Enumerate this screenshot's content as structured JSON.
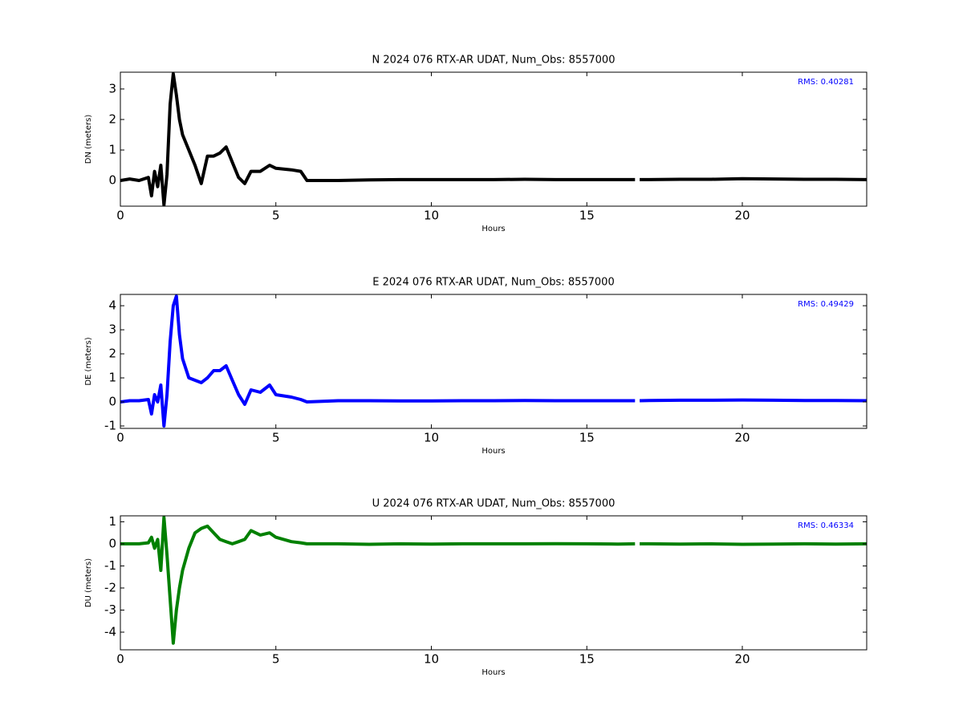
{
  "chart_data": [
    {
      "type": "line",
      "title": "N 2024 076 RTX-AR  UDAT, Num_Obs: 8557000",
      "xlabel": "Hours",
      "ylabel": "DN (meters)",
      "annotation": "RMS:  0.40281",
      "color": "#000000",
      "x": [
        0,
        0.3,
        0.6,
        0.9,
        1.0,
        1.1,
        1.2,
        1.3,
        1.4,
        1.5,
        1.6,
        1.7,
        1.8,
        1.9,
        2.0,
        2.2,
        2.4,
        2.6,
        2.8,
        3.0,
        3.2,
        3.4,
        3.6,
        3.8,
        4.0,
        4.2,
        4.5,
        4.8,
        5.0,
        5.5,
        5.8,
        6.0,
        7,
        8,
        9,
        10,
        11,
        12,
        13,
        14,
        15,
        16,
        16.55,
        16.6,
        16.7,
        17,
        18,
        19,
        20,
        21,
        22,
        23,
        24
      ],
      "values": [
        0,
        0.05,
        0,
        0.1,
        -0.5,
        0.3,
        -0.2,
        0.5,
        -0.8,
        0.2,
        2.5,
        3.5,
        2.8,
        2.0,
        1.5,
        1.0,
        0.5,
        -0.1,
        0.8,
        0.8,
        0.9,
        1.1,
        0.6,
        0.1,
        -0.1,
        0.3,
        0.3,
        0.5,
        0.4,
        0.35,
        0.3,
        0,
        0,
        0.02,
        0.03,
        0.03,
        0.03,
        0.03,
        0.04,
        0.03,
        0.03,
        0.03,
        0.03,
        null,
        0.03,
        0.03,
        0.04,
        0.04,
        0.06,
        0.05,
        0.04,
        0.04,
        0.03
      ],
      "xlim": [
        0,
        24
      ],
      "xticks": [
        0,
        5,
        10,
        15,
        20
      ],
      "ylim": [
        -0.84,
        3.55
      ],
      "yticks": [
        0,
        1,
        2,
        3
      ]
    },
    {
      "type": "line",
      "title": "E 2024 076 RTX-AR  UDAT, Num_Obs: 8557000",
      "xlabel": "Hours",
      "ylabel": "DE (meters)",
      "annotation": "RMS:  0.49429",
      "color": "#0000ff",
      "x": [
        0,
        0.3,
        0.6,
        0.9,
        1.0,
        1.1,
        1.2,
        1.3,
        1.4,
        1.5,
        1.6,
        1.7,
        1.8,
        1.9,
        2.0,
        2.2,
        2.4,
        2.6,
        2.8,
        3.0,
        3.2,
        3.4,
        3.6,
        3.8,
        4.0,
        4.2,
        4.5,
        4.8,
        5.0,
        5.5,
        5.8,
        6.0,
        7,
        8,
        9,
        10,
        11,
        12,
        13,
        14,
        15,
        16,
        16.55,
        16.6,
        16.7,
        17,
        18,
        19,
        20,
        21,
        22,
        23,
        24
      ],
      "values": [
        0,
        0.05,
        0.05,
        0.1,
        -0.5,
        0.3,
        0,
        0.7,
        -1.0,
        0.3,
        2.5,
        4.0,
        4.4,
        2.8,
        1.8,
        1.0,
        0.9,
        0.8,
        1.0,
        1.3,
        1.3,
        1.5,
        0.9,
        0.3,
        -0.1,
        0.5,
        0.4,
        0.7,
        0.3,
        0.2,
        0.1,
        0,
        0.05,
        0.05,
        0.04,
        0.04,
        0.05,
        0.05,
        0.06,
        0.05,
        0.05,
        0.05,
        0.05,
        null,
        0.05,
        0.06,
        0.07,
        0.07,
        0.08,
        0.07,
        0.06,
        0.06,
        0.05
      ],
      "xlim": [
        0,
        24
      ],
      "xticks": [
        0,
        5,
        10,
        15,
        20
      ],
      "ylim": [
        -1.1,
        4.47
      ],
      "yticks": [
        -1,
        0,
        1,
        2,
        3,
        4
      ]
    },
    {
      "type": "line",
      "title": "U 2024 076 RTX-AR  UDAT, Num_Obs: 8557000",
      "xlabel": "Hours",
      "ylabel": "DU (meters)",
      "annotation": "RMS:  0.46334",
      "color": "#008000",
      "x": [
        0,
        0.3,
        0.6,
        0.9,
        1.0,
        1.1,
        1.2,
        1.3,
        1.4,
        1.5,
        1.6,
        1.7,
        1.8,
        1.9,
        2.0,
        2.2,
        2.4,
        2.6,
        2.8,
        3.0,
        3.2,
        3.4,
        3.6,
        3.8,
        4.0,
        4.2,
        4.5,
        4.8,
        5.0,
        5.5,
        5.8,
        6.0,
        7,
        8,
        9,
        10,
        11,
        12,
        13,
        14,
        15,
        16,
        16.55,
        16.6,
        16.7,
        17,
        18,
        19,
        20,
        21,
        22,
        23,
        24
      ],
      "values": [
        0,
        0,
        0,
        0.05,
        0.3,
        -0.2,
        0.2,
        -1.2,
        1.2,
        -0.5,
        -2.5,
        -4.5,
        -3.0,
        -2.0,
        -1.2,
        -0.2,
        0.5,
        0.7,
        0.8,
        0.5,
        0.2,
        0.1,
        0,
        0.1,
        0.2,
        0.6,
        0.4,
        0.5,
        0.3,
        0.1,
        0.05,
        0,
        0,
        -0.02,
        0,
        -0.01,
        0,
        0,
        0,
        0.01,
        0,
        -0.01,
        0,
        null,
        0,
        0,
        -0.01,
        0,
        -0.02,
        -0.01,
        0,
        -0.01,
        0
      ],
      "xlim": [
        0,
        24
      ],
      "xticks": [
        0,
        5,
        10,
        15,
        20
      ],
      "ylim": [
        -4.8,
        1.27
      ],
      "yticks": [
        -4,
        -3,
        -2,
        -1,
        0,
        1
      ]
    }
  ]
}
